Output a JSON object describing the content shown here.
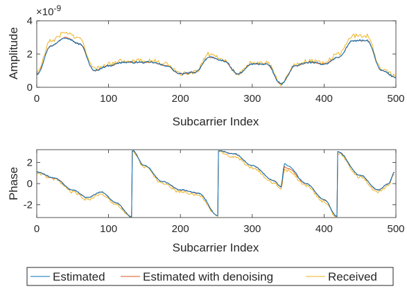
{
  "chart_data": [
    {
      "type": "line",
      "xlabel": "Subcarrier Index",
      "ylabel": "Amplitude",
      "exponent": "×10",
      "exponent_power": "-9",
      "xlim": [
        0,
        500
      ],
      "ylim": [
        0,
        4
      ],
      "xticks": [
        "0",
        "100",
        "200",
        "300",
        "400",
        "500"
      ],
      "yticks": [
        "0",
        "2",
        "4"
      ],
      "x": [
        0,
        20,
        40,
        60,
        80,
        100,
        120,
        140,
        160,
        180,
        200,
        220,
        240,
        260,
        280,
        300,
        320,
        340,
        360,
        380,
        400,
        420,
        440,
        460,
        480,
        500
      ],
      "series": [
        {
          "name": "Estimated",
          "color": "#0072BD",
          "values": [
            0.8,
            2.5,
            3.0,
            2.6,
            1.0,
            1.3,
            1.5,
            1.5,
            1.5,
            1.3,
            0.8,
            0.9,
            1.8,
            1.6,
            0.8,
            1.4,
            1.4,
            0.2,
            1.3,
            1.5,
            1.4,
            1.8,
            2.8,
            2.8,
            1.0,
            0.6
          ],
          "noise": 0.06
        },
        {
          "name": "Estimated with denoising",
          "color": "#D95319",
          "values": [
            0.8,
            2.5,
            3.0,
            2.6,
            1.0,
            1.3,
            1.5,
            1.5,
            1.5,
            1.3,
            0.8,
            0.9,
            1.8,
            1.6,
            0.8,
            1.4,
            1.4,
            0.2,
            1.3,
            1.5,
            1.4,
            1.8,
            2.8,
            2.8,
            1.0,
            0.6
          ],
          "noise": 0.02
        },
        {
          "name": "Received",
          "color": "#EDB120",
          "values": [
            0.9,
            2.8,
            3.3,
            2.9,
            1.1,
            1.4,
            1.6,
            1.6,
            1.6,
            1.4,
            0.8,
            0.9,
            2.0,
            1.7,
            0.8,
            1.5,
            1.5,
            0.2,
            1.4,
            1.6,
            1.5,
            2.0,
            3.1,
            3.1,
            1.1,
            0.7
          ],
          "noise": 0.12
        }
      ]
    },
    {
      "type": "line",
      "xlabel": "Subcarrier Index",
      "ylabel": "Phase",
      "xlim": [
        0,
        500
      ],
      "ylim": [
        -3.2,
        3.2
      ],
      "xticks": [
        "0",
        "100",
        "200",
        "300",
        "400",
        "500"
      ],
      "yticks": [
        "-2",
        "0",
        "2"
      ],
      "x": [
        0,
        25,
        50,
        70,
        90,
        110,
        132,
        133,
        150,
        175,
        200,
        225,
        252,
        253,
        275,
        300,
        330,
        340,
        345,
        350,
        375,
        400,
        418,
        419,
        450,
        475,
        490,
        498
      ],
      "series": [
        {
          "name": "Estimated",
          "color": "#0072BD",
          "values": [
            1.1,
            0.5,
            -0.6,
            -1.3,
            -0.8,
            -1.8,
            -3.1,
            3.1,
            1.7,
            0.2,
            -0.6,
            -0.9,
            -3.0,
            3.1,
            2.8,
            1.7,
            0.3,
            -0.3,
            1.9,
            1.6,
            0.0,
            -1.5,
            -3.1,
            3.0,
            0.8,
            -0.6,
            0.0,
            1.1
          ],
          "noise": 0.06
        },
        {
          "name": "Estimated with denoising",
          "color": "#D95319",
          "values": [
            1.1,
            0.5,
            -0.6,
            -1.3,
            -0.8,
            -1.8,
            -3.1,
            3.1,
            1.7,
            0.2,
            -0.6,
            -0.9,
            -3.0,
            3.1,
            2.8,
            1.7,
            0.3,
            -0.3,
            1.6,
            1.4,
            0.0,
            -1.5,
            -3.1,
            3.0,
            0.8,
            -0.6,
            0.0,
            1.1
          ],
          "noise": 0.02
        },
        {
          "name": "Received",
          "color": "#EDB120",
          "values": [
            1.0,
            0.4,
            -0.8,
            -1.5,
            -1.0,
            -2.0,
            -3.2,
            3.0,
            1.6,
            0.0,
            -0.8,
            -1.1,
            -3.1,
            3.0,
            2.5,
            1.5,
            0.1,
            -0.5,
            1.3,
            1.2,
            -0.2,
            -1.7,
            -3.2,
            2.9,
            0.6,
            -0.8,
            -0.2,
            0.9
          ],
          "noise": 0.12
        }
      ]
    }
  ],
  "legend": {
    "placement": "bottom",
    "entries": [
      "Estimated",
      "Estimated with denoising",
      "Received"
    ]
  }
}
